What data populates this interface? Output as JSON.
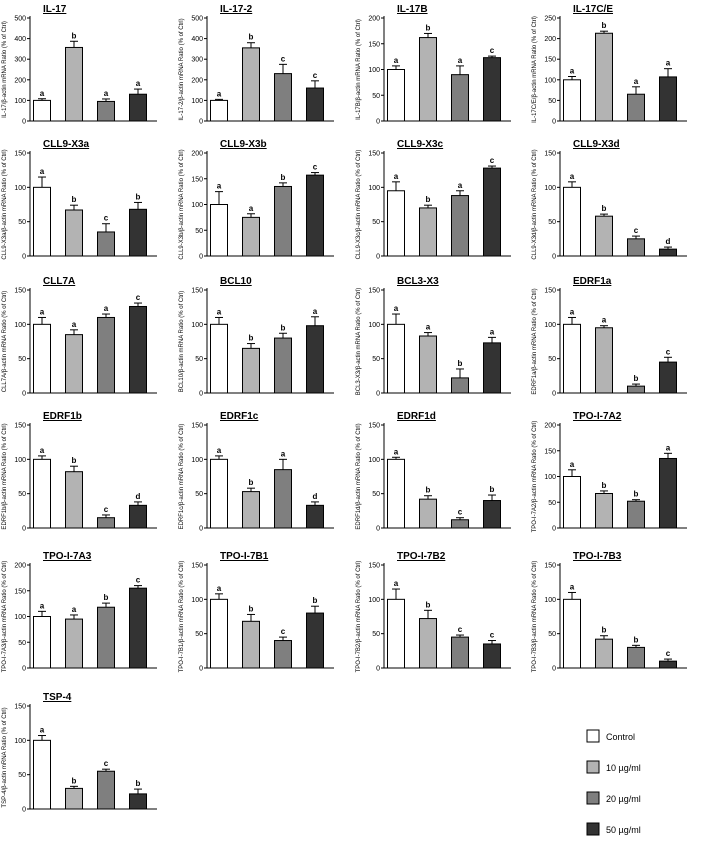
{
  "colors": {
    "Control": "#ffffff",
    "10 µg/ml": "#b3b3b3",
    "20 µg/ml": "#7f7f7f",
    "50 µg/ml": "#333333"
  },
  "legend": [
    {
      "label": "Control",
      "color": "#ffffff"
    },
    {
      "label": "10 µg/ml",
      "color": "#b3b3b3"
    },
    {
      "label": "20 µg/ml",
      "color": "#7f7f7f"
    },
    {
      "label": "50 µg/ml",
      "color": "#333333"
    }
  ],
  "chart_data": [
    {
      "type": "bar",
      "title": "IL-17",
      "ylabel": "IL-17/β-actin mRNA Ratio (% of Ctrl)",
      "ylim": [
        0,
        500
      ],
      "yticks": [
        0,
        100,
        200,
        300,
        400,
        500
      ],
      "categories": [
        "Control",
        "10 µg/ml",
        "20 µg/ml",
        "50 µg/ml"
      ],
      "values": [
        100,
        357,
        95,
        130
      ],
      "errors": [
        8,
        30,
        12,
        25
      ],
      "letters": [
        "a",
        "b",
        "a",
        "a"
      ]
    },
    {
      "type": "bar",
      "title": "IL-17-2",
      "ylabel": "IL-17-2/β-actin mRNA Ratio (% of Ctrl)",
      "ylim": [
        0,
        500
      ],
      "yticks": [
        0,
        100,
        200,
        300,
        400,
        500
      ],
      "categories": [
        "Control",
        "10 µg/ml",
        "20 µg/ml",
        "50 µg/ml"
      ],
      "values": [
        100,
        355,
        230,
        160
      ],
      "errors": [
        5,
        25,
        45,
        35
      ],
      "letters": [
        "a",
        "b",
        "c",
        "c"
      ]
    },
    {
      "type": "bar",
      "title": "IL-17B",
      "ylabel": "IL-17B/β-actin mRNA Ratio (% of Ctrl)",
      "ylim": [
        0,
        200
      ],
      "yticks": [
        0,
        50,
        100,
        150,
        200
      ],
      "categories": [
        "Control",
        "10 µg/ml",
        "20 µg/ml",
        "50 µg/ml"
      ],
      "values": [
        100,
        162,
        90,
        123
      ],
      "errors": [
        7,
        8,
        17,
        3
      ],
      "letters": [
        "a",
        "b",
        "a",
        "c"
      ]
    },
    {
      "type": "bar",
      "title": "IL-17C/E",
      "ylabel": "IL-17C/E/β-actin mRNA Ratio (% of Ctrl)",
      "ylim": [
        0,
        250
      ],
      "yticks": [
        0,
        50,
        100,
        150,
        200,
        250
      ],
      "categories": [
        "Control",
        "10 µg/ml",
        "20 µg/ml",
        "50 µg/ml"
      ],
      "values": [
        100,
        213,
        65,
        107
      ],
      "errors": [
        8,
        5,
        18,
        20
      ],
      "letters": [
        "a",
        "b",
        "a",
        "a"
      ]
    },
    {
      "type": "bar",
      "title": "CLL9-X3a",
      "ylabel": "CLL9-X3a/β-actin mRNA Ratio (% of Ctrl)",
      "ylim": [
        0,
        150
      ],
      "yticks": [
        0,
        50,
        100,
        150
      ],
      "categories": [
        "Control",
        "10 µg/ml",
        "20 µg/ml",
        "50 µg/ml"
      ],
      "values": [
        100,
        67,
        35,
        68
      ],
      "errors": [
        15,
        7,
        12,
        10
      ],
      "letters": [
        "a",
        "b",
        "c",
        "b"
      ]
    },
    {
      "type": "bar",
      "title": "CLL9-X3b",
      "ylabel": "CLL9-X3b/β-actin mRNA Ratio (% of Ctrl)",
      "ylim": [
        0,
        200
      ],
      "yticks": [
        0,
        50,
        100,
        150,
        200
      ],
      "categories": [
        "Control",
        "10 µg/ml",
        "20 µg/ml",
        "50 µg/ml"
      ],
      "values": [
        100,
        75,
        135,
        157
      ],
      "errors": [
        25,
        7,
        7,
        5
      ],
      "letters": [
        "a",
        "a",
        "b",
        "c"
      ]
    },
    {
      "type": "bar",
      "title": "CLL9-X3c",
      "ylabel": "CLL9-X3c/β-actin mRNA Ratio (% of Ctrl)",
      "ylim": [
        0,
        150
      ],
      "yticks": [
        0,
        50,
        100,
        150
      ],
      "categories": [
        "Control",
        "10 µg/ml",
        "20 µg/ml",
        "50 µg/ml"
      ],
      "values": [
        95,
        70,
        88,
        128
      ],
      "errors": [
        13,
        4,
        7,
        3
      ],
      "letters": [
        "a",
        "b",
        "a",
        "c"
      ]
    },
    {
      "type": "bar",
      "title": "CLL9-X3d",
      "ylabel": "CLL9-X3d/β-actin mRNA Ratio (% of Ctrl)",
      "ylim": [
        0,
        150
      ],
      "yticks": [
        0,
        50,
        100,
        150
      ],
      "categories": [
        "Control",
        "10 µg/ml",
        "20 µg/ml",
        "50 µg/ml"
      ],
      "values": [
        100,
        58,
        25,
        10
      ],
      "errors": [
        8,
        3,
        4,
        3
      ],
      "letters": [
        "a",
        "b",
        "c",
        "d"
      ]
    },
    {
      "type": "bar",
      "title": "CLL7A",
      "ylabel": "CLL7A/β-actin mRNA Ratio (% of Ctrl)",
      "ylim": [
        0,
        150
      ],
      "yticks": [
        0,
        50,
        100,
        150
      ],
      "categories": [
        "Control",
        "10 µg/ml",
        "20 µg/ml",
        "50 µg/ml"
      ],
      "values": [
        100,
        85,
        110,
        126
      ],
      "errors": [
        10,
        7,
        5,
        5
      ],
      "letters": [
        "a",
        "a",
        "a",
        "c"
      ]
    },
    {
      "type": "bar",
      "title": "BCL10",
      "ylabel": "BCL10/β-actin mRNA Ratio (% of Ctrl)",
      "ylim": [
        0,
        150
      ],
      "yticks": [
        0,
        50,
        100,
        150
      ],
      "categories": [
        "Control",
        "10 µg/ml",
        "20 µg/ml",
        "50 µg/ml"
      ],
      "values": [
        100,
        65,
        80,
        98
      ],
      "errors": [
        10,
        7,
        7,
        13
      ],
      "letters": [
        "a",
        "b",
        "b",
        "a"
      ]
    },
    {
      "type": "bar",
      "title": "BCL3-X3",
      "ylabel": "BCL3-X3/β-actin mRNA Ratio (% of Ctrl)",
      "ylim": [
        0,
        150
      ],
      "yticks": [
        0,
        50,
        100,
        150
      ],
      "categories": [
        "Control",
        "10 µg/ml",
        "20 µg/ml",
        "50 µg/ml"
      ],
      "values": [
        100,
        83,
        22,
        73
      ],
      "errors": [
        15,
        5,
        13,
        8
      ],
      "letters": [
        "a",
        "a",
        "b",
        "a"
      ]
    },
    {
      "type": "bar",
      "title": "EDRF1a",
      "ylabel": "EDRF1a/β-actin mRNA Ratio (% of Ctrl)",
      "ylim": [
        0,
        150
      ],
      "yticks": [
        0,
        50,
        100,
        150
      ],
      "categories": [
        "Control",
        "10 µg/ml",
        "20 µg/ml",
        "50 µg/ml"
      ],
      "values": [
        100,
        95,
        10,
        45
      ],
      "errors": [
        10,
        3,
        3,
        7
      ],
      "letters": [
        "a",
        "a",
        "b",
        "c"
      ]
    },
    {
      "type": "bar",
      "title": "EDRF1b",
      "ylabel": "EDRF1b/β-actin mRNA Ratio (% of Ctrl)",
      "ylim": [
        0,
        150
      ],
      "yticks": [
        0,
        50,
        100,
        150
      ],
      "categories": [
        "Control",
        "10 µg/ml",
        "20 µg/ml",
        "50 µg/ml"
      ],
      "values": [
        100,
        82,
        15,
        33
      ],
      "errors": [
        5,
        8,
        4,
        5
      ],
      "letters": [
        "a",
        "b",
        "c",
        "d"
      ]
    },
    {
      "type": "bar",
      "title": "EDRF1c",
      "ylabel": "EDRF1c/β-actin mRNA Ratio (% of Ctrl)",
      "ylim": [
        0,
        150
      ],
      "yticks": [
        0,
        50,
        100,
        150
      ],
      "categories": [
        "Control",
        "10 µg/ml",
        "20 µg/ml",
        "50 µg/ml"
      ],
      "values": [
        100,
        53,
        85,
        33
      ],
      "errors": [
        5,
        5,
        15,
        5
      ],
      "letters": [
        "a",
        "b",
        "a",
        "d"
      ]
    },
    {
      "type": "bar",
      "title": "EDRF1d",
      "ylabel": "EDRF1d/β-actin mRNA Ratio (% of Ctrl)",
      "ylim": [
        0,
        150
      ],
      "yticks": [
        0,
        50,
        100,
        150
      ],
      "categories": [
        "Control",
        "10 µg/ml",
        "20 µg/ml",
        "50 µg/ml"
      ],
      "values": [
        100,
        42,
        12,
        40
      ],
      "errors": [
        3,
        5,
        3,
        8
      ],
      "letters": [
        "a",
        "b",
        "c",
        "b"
      ]
    },
    {
      "type": "bar",
      "title": "TPO-I-7A2",
      "ylabel": "TPO-I-7A2/β-actin mRNA Ratio (% of Ctrl)",
      "ylim": [
        0,
        200
      ],
      "yticks": [
        0,
        50,
        100,
        150,
        200
      ],
      "categories": [
        "Control",
        "10 µg/ml",
        "20 µg/ml",
        "50 µg/ml"
      ],
      "values": [
        100,
        67,
        52,
        135
      ],
      "errors": [
        13,
        5,
        3,
        10
      ],
      "letters": [
        "a",
        "b",
        "b",
        "a"
      ]
    },
    {
      "type": "bar",
      "title": "TPO-I-7A3",
      "ylabel": "TPO-I-7A3/β-actin mRNA Ratio (% of Ctrl)",
      "ylim": [
        0,
        200
      ],
      "yticks": [
        0,
        50,
        100,
        150,
        200
      ],
      "categories": [
        "Control",
        "10 µg/ml",
        "20 µg/ml",
        "50 µg/ml"
      ],
      "values": [
        100,
        95,
        118,
        155
      ],
      "errors": [
        10,
        8,
        8,
        5
      ],
      "letters": [
        "a",
        "a",
        "b",
        "c"
      ]
    },
    {
      "type": "bar",
      "title": "TPO-I-7B1",
      "ylabel": "TPO-I-7B1/β-actin mRNA Ratio (% of Ctrl)",
      "ylim": [
        0,
        150
      ],
      "yticks": [
        0,
        50,
        100,
        150
      ],
      "categories": [
        "Control",
        "10 µg/ml",
        "20 µg/ml",
        "50 µg/ml"
      ],
      "values": [
        100,
        68,
        40,
        80
      ],
      "errors": [
        8,
        10,
        5,
        10
      ],
      "letters": [
        "a",
        "b",
        "c",
        "b"
      ]
    },
    {
      "type": "bar",
      "title": "TPO-I-7B2",
      "ylabel": "TPO-I-7B2/β-actin mRNA Ratio (% of Ctrl)",
      "ylim": [
        0,
        150
      ],
      "yticks": [
        0,
        50,
        100,
        150
      ],
      "categories": [
        "Control",
        "10 µg/ml",
        "20 µg/ml",
        "50 µg/ml"
      ],
      "values": [
        100,
        72,
        45,
        35
      ],
      "errors": [
        15,
        12,
        3,
        5
      ],
      "letters": [
        "a",
        "b",
        "c",
        "c"
      ]
    },
    {
      "type": "bar",
      "title": "TPO-I-7B3",
      "ylabel": "TPO-I-7B3/β-actin mRNA Ratio (% of Ctrl)",
      "ylim": [
        0,
        150
      ],
      "yticks": [
        0,
        50,
        100,
        150
      ],
      "categories": [
        "Control",
        "10 µg/ml",
        "20 µg/ml",
        "50 µg/ml"
      ],
      "values": [
        100,
        42,
        30,
        10
      ],
      "errors": [
        10,
        5,
        3,
        3
      ],
      "letters": [
        "a",
        "b",
        "b",
        "c"
      ]
    },
    {
      "type": "bar",
      "title": "TSP-4",
      "ylabel": "TSP-4/β-actin mRNA Ratio (% of Ctrl)",
      "ylim": [
        0,
        150
      ],
      "yticks": [
        0,
        50,
        100,
        150
      ],
      "categories": [
        "Control",
        "10 µg/ml",
        "20 µg/ml",
        "50 µg/ml"
      ],
      "values": [
        100,
        30,
        55,
        22
      ],
      "errors": [
        7,
        3,
        3,
        7
      ],
      "letters": [
        "a",
        "b",
        "c",
        "b"
      ]
    }
  ]
}
